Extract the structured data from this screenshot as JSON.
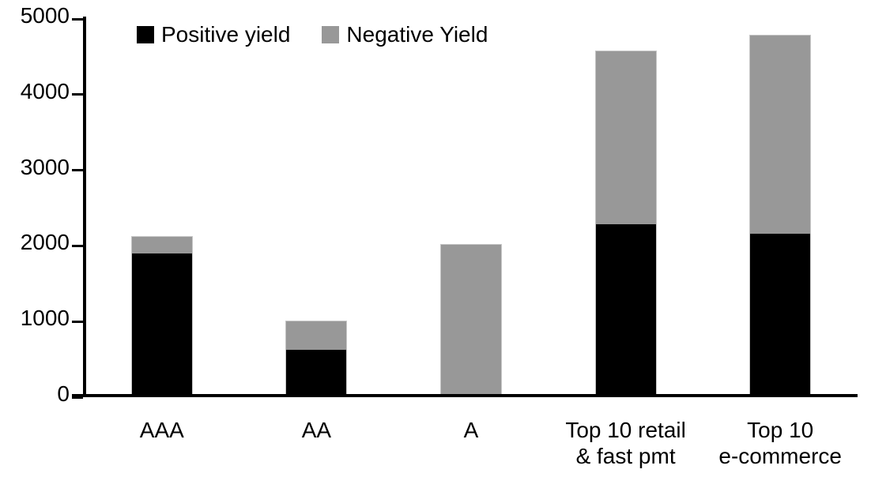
{
  "chart_data": {
    "type": "bar",
    "stacked": true,
    "title": "",
    "categories": [
      "AAA",
      "AA",
      "A",
      "Top 10 retail & fast pmt",
      "Top 10 e-commerce"
    ],
    "category_label_lines": [
      [
        "AAA"
      ],
      [
        "AA"
      ],
      [
        "A"
      ],
      [
        "Top 10 retail",
        "& fast pmt"
      ],
      [
        "Top 10",
        "e-commerce"
      ]
    ],
    "series": [
      {
        "name": "Positive yield",
        "color": "#000000",
        "values": [
          1900,
          630,
          45,
          2290,
          2160
        ]
      },
      {
        "name": "Negative Yield",
        "color": "#989898",
        "values": [
          230,
          380,
          1985,
          2290,
          2630
        ]
      }
    ],
    "totals": [
      2130,
      1010,
      2030,
      4580,
      4790
    ],
    "xlabel": "",
    "ylabel": "",
    "ylim": [
      0,
      5000
    ],
    "ytick_step": 1000,
    "ytick_labels": [
      "0",
      "1000",
      "2000",
      "3000",
      "4000",
      "5000"
    ],
    "grid": false,
    "legend_position": "top"
  },
  "colors": {
    "positive": "#000000",
    "negative": "#989898",
    "axis": "#000000",
    "background": "#ffffff",
    "bar_border": "#c6c6c6"
  }
}
